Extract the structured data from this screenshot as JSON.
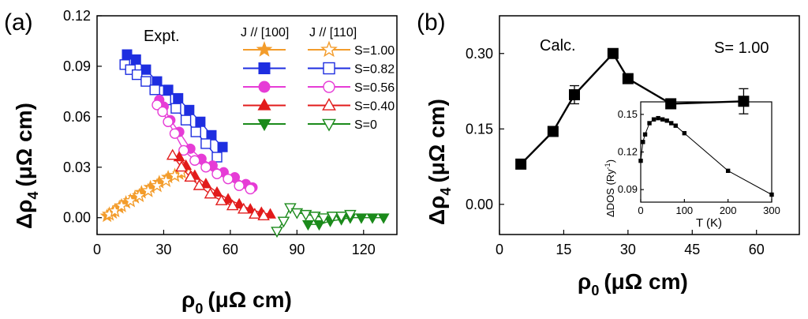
{
  "panel_a": {
    "letter": "(a)",
    "annotation": "Expt.",
    "legend_header_1": "J // [100]",
    "legend_header_2": "J // [110]",
    "xlabel": "ρ",
    "xlabel_sub": "0",
    "xlabel_unit": "(μΩ cm)",
    "ylabel": "Δρ",
    "ylabel_sub": "4",
    "ylabel_unit": "(μΩ cm)"
  },
  "panel_b": {
    "letter": "(b)",
    "annotation": "Calc.",
    "s_label": "S= 1.00",
    "xlabel": "ρ",
    "xlabel_sub": "0",
    "xlabel_unit": "(μΩ cm)",
    "ylabel": "Δρ",
    "ylabel_sub": "4",
    "ylabel_unit": "(μΩ cm)",
    "inset_xlabel": "T (K)",
    "inset_ylabel": "ΔDOS (Ry",
    "inset_ylabel_sup": "-1",
    "inset_ylabel_end": ")"
  },
  "chart_data": [
    {
      "type": "scatter",
      "panel": "a",
      "xlim": [
        0,
        135
      ],
      "ylim": [
        -0.01,
        0.12
      ],
      "xticks": [
        "0",
        "30",
        "60",
        "90",
        "120"
      ],
      "yticks": [
        "0.00",
        "0.03",
        "0.06",
        "0.09",
        "0.12"
      ],
      "series": [
        {
          "name": "S=1.00",
          "group": "J // [100]",
          "color": "#f39c2b",
          "marker": "star",
          "filled": true,
          "x": [
            4.5,
            7,
            10,
            13,
            17,
            20,
            24,
            28,
            32,
            37
          ],
          "y": [
            0.001,
            0.003,
            0.006,
            0.009,
            0.012,
            0.015,
            0.018,
            0.021,
            0.024,
            0.026
          ]
        },
        {
          "name": "S=1.00",
          "group": "J // [110]",
          "color": "#f39c2b",
          "marker": "star",
          "filled": false,
          "x": [
            5.5,
            8,
            11,
            15,
            19,
            23,
            27,
            31,
            35,
            38
          ],
          "y": [
            0.002,
            0.004,
            0.007,
            0.01,
            0.013,
            0.016,
            0.019,
            0.022,
            0.025,
            0.027
          ]
        },
        {
          "name": "S=0.82",
          "group": "J // [100]",
          "color": "#1e2ee0",
          "marker": "square",
          "filled": true,
          "x": [
            13.5,
            17.5,
            22,
            27,
            32,
            36.5,
            41.5,
            46.5,
            51.5,
            56.5
          ],
          "y": [
            0.097,
            0.094,
            0.088,
            0.081,
            0.076,
            0.071,
            0.064,
            0.057,
            0.049,
            0.042
          ]
        },
        {
          "name": "S=0.82",
          "group": "J // [110]",
          "color": "#1e2ee0",
          "marker": "square",
          "filled": false,
          "x": [
            12.5,
            15,
            18,
            22,
            26,
            31,
            35.5,
            40,
            44.5,
            49,
            54
          ],
          "y": [
            0.091,
            0.088,
            0.085,
            0.081,
            0.076,
            0.07,
            0.065,
            0.058,
            0.051,
            0.044,
            0.036
          ]
        },
        {
          "name": "S=0.56",
          "group": "J // [100]",
          "color": "#e63cd6",
          "marker": "circle",
          "filled": true,
          "x": [
            28,
            30,
            33,
            37,
            42,
            47,
            52,
            57,
            62,
            67,
            70
          ],
          "y": [
            0.07,
            0.066,
            0.058,
            0.051,
            0.041,
            0.035,
            0.031,
            0.027,
            0.024,
            0.02,
            0.018
          ]
        },
        {
          "name": "S=0.56",
          "group": "J // [110]",
          "color": "#e63cd6",
          "marker": "circle",
          "filled": false,
          "x": [
            27,
            29.5,
            32,
            35,
            39,
            44,
            49,
            54,
            59,
            64,
            69
          ],
          "y": [
            0.067,
            0.063,
            0.057,
            0.05,
            0.04,
            0.034,
            0.03,
            0.026,
            0.023,
            0.019,
            0.017
          ]
        },
        {
          "name": "S=0.40",
          "group": "J // [100]",
          "color": "#e21b1b",
          "marker": "triangle",
          "filled": true,
          "x": [
            37,
            40,
            44,
            49,
            54,
            59,
            64,
            69,
            74,
            78
          ],
          "y": [
            0.036,
            0.031,
            0.025,
            0.02,
            0.015,
            0.011,
            0.008,
            0.005,
            0.003,
            0.002
          ]
        },
        {
          "name": "S=0.40",
          "group": "J // [110]",
          "color": "#e21b1b",
          "marker": "triangle",
          "filled": false,
          "x": [
            34,
            38,
            42,
            46,
            51,
            56,
            61,
            66,
            71,
            75
          ],
          "y": [
            0.037,
            0.03,
            0.024,
            0.019,
            0.014,
            0.01,
            0.007,
            0.005,
            0.002,
            0.001
          ]
        },
        {
          "name": "S=0",
          "group": "J // [100]",
          "color": "#1b8a1b",
          "marker": "triangle-down",
          "filled": true,
          "x": [
            95,
            100,
            105,
            110,
            114,
            119,
            124,
            129
          ],
          "y": [
            -0.004,
            -0.004,
            -0.002,
            -0.001,
            0.0,
            0.0,
            0.0,
            0.0
          ]
        },
        {
          "name": "S=0",
          "group": "J // [110]",
          "color": "#1b8a1b",
          "marker": "triangle-down",
          "filled": false,
          "x": [
            81,
            84,
            87,
            90,
            94,
            98,
            102,
            106,
            110,
            114
          ],
          "y": [
            -0.008,
            -0.002,
            0.006,
            0.003,
            0.002,
            0.001,
            0.0,
            0.001,
            0.001,
            0.002
          ]
        }
      ]
    },
    {
      "type": "line",
      "panel": "b",
      "xlim": [
        0,
        70
      ],
      "ylim": [
        -0.06,
        0.375
      ],
      "xticks": [
        "0",
        "15",
        "30",
        "45",
        "60"
      ],
      "yticks": [
        "0.00",
        "0.15",
        "0.30"
      ],
      "series": [
        {
          "color": "#000000",
          "marker": "square",
          "x": [
            5,
            12.5,
            17.5,
            26.5,
            30,
            40,
            57
          ],
          "y": [
            0.08,
            0.145,
            0.218,
            0.3,
            0.25,
            0.2,
            0.205
          ],
          "yerr": [
            0,
            0,
            0.018,
            0,
            0,
            0,
            0.025
          ]
        }
      ]
    },
    {
      "type": "line",
      "panel": "b-inset",
      "xlim": [
        0,
        300
      ],
      "ylim": [
        0.08,
        0.16
      ],
      "xticks": [
        "0",
        "100",
        "200",
        "300"
      ],
      "yticks": [
        "0.09",
        "0.12",
        "0.15"
      ],
      "series": [
        {
          "color": "#000000",
          "marker": "square",
          "x": [
            0,
            5,
            10,
            20,
            30,
            40,
            50,
            60,
            70,
            80,
            100,
            200,
            300
          ],
          "y": [
            0.113,
            0.128,
            0.134,
            0.143,
            0.146,
            0.147,
            0.146,
            0.145,
            0.143,
            0.141,
            0.135,
            0.105,
            0.086
          ]
        }
      ]
    }
  ]
}
